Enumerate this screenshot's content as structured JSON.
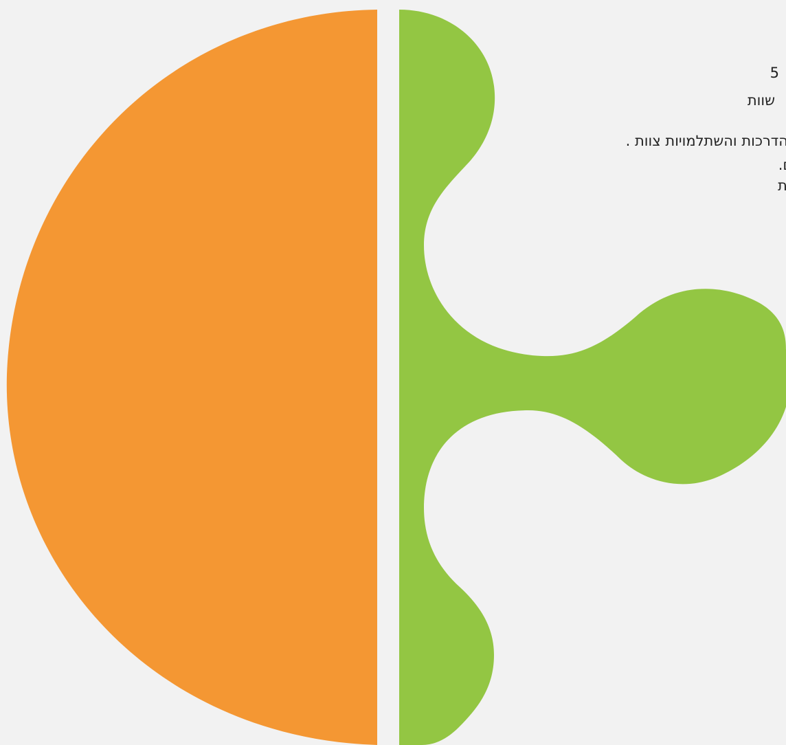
{
  "colors": {
    "background": "#f2f2f2",
    "orange": "#f49733",
    "green": "#93c643",
    "text": "#222222"
  },
  "shapes": {
    "left_half_circle": "orange",
    "right_puzzle_piece": "green"
  },
  "text_lines": [
    "5",
    "שוות",
    "הדרכות והשתלמויות צוות .",
    "ים.",
    "דית"
  ]
}
